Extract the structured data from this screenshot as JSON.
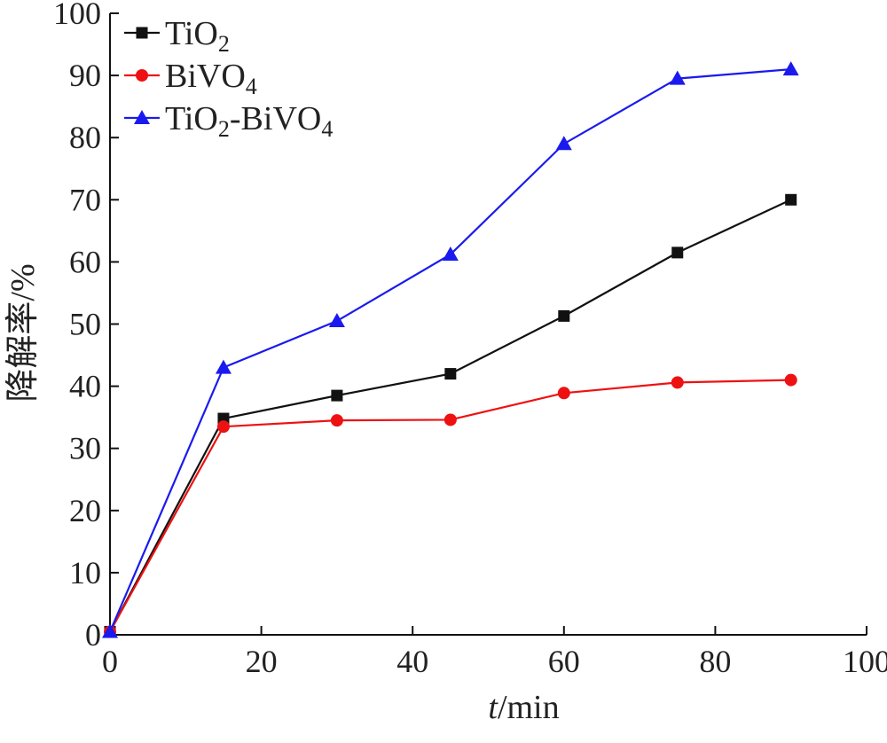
{
  "chart_data": {
    "type": "line",
    "xlabel_italic": "t",
    "xlabel_rest": "/min",
    "ylabel": "降解率/%",
    "xlim": [
      0,
      100
    ],
    "ylim": [
      0,
      100
    ],
    "xticks": [
      "0",
      "20",
      "40",
      "60",
      "80",
      "100"
    ],
    "yticks": [
      "0",
      "10",
      "20",
      "30",
      "40",
      "50",
      "60",
      "70",
      "80",
      "90",
      "100"
    ],
    "x": [
      0,
      15,
      30,
      45,
      60,
      75,
      90
    ],
    "legend_position": "top-left",
    "grid": false,
    "series": [
      {
        "name": "TiO2",
        "name_parts": [
          {
            "t": "TiO"
          },
          {
            "t": "2",
            "sub": true
          }
        ],
        "color": "#111111",
        "marker": "square",
        "values": [
          0.5,
          34.8,
          38.5,
          42.0,
          51.3,
          61.5,
          70.0
        ]
      },
      {
        "name": "BiVO4",
        "name_parts": [
          {
            "t": "BiVO"
          },
          {
            "t": "4",
            "sub": true
          }
        ],
        "color": "#ee1111",
        "marker": "circle",
        "values": [
          0.5,
          33.5,
          34.5,
          34.6,
          38.9,
          40.6,
          41.0
        ]
      },
      {
        "name": "TiO2-BiVO4",
        "name_parts": [
          {
            "t": "TiO"
          },
          {
            "t": "2",
            "sub": true
          },
          {
            "t": "-BiVO"
          },
          {
            "t": "4",
            "sub": true
          }
        ],
        "color": "#1a1aee",
        "marker": "triangle",
        "values": [
          0.5,
          43.0,
          50.5,
          61.2,
          79.0,
          89.5,
          91.0
        ]
      }
    ]
  }
}
